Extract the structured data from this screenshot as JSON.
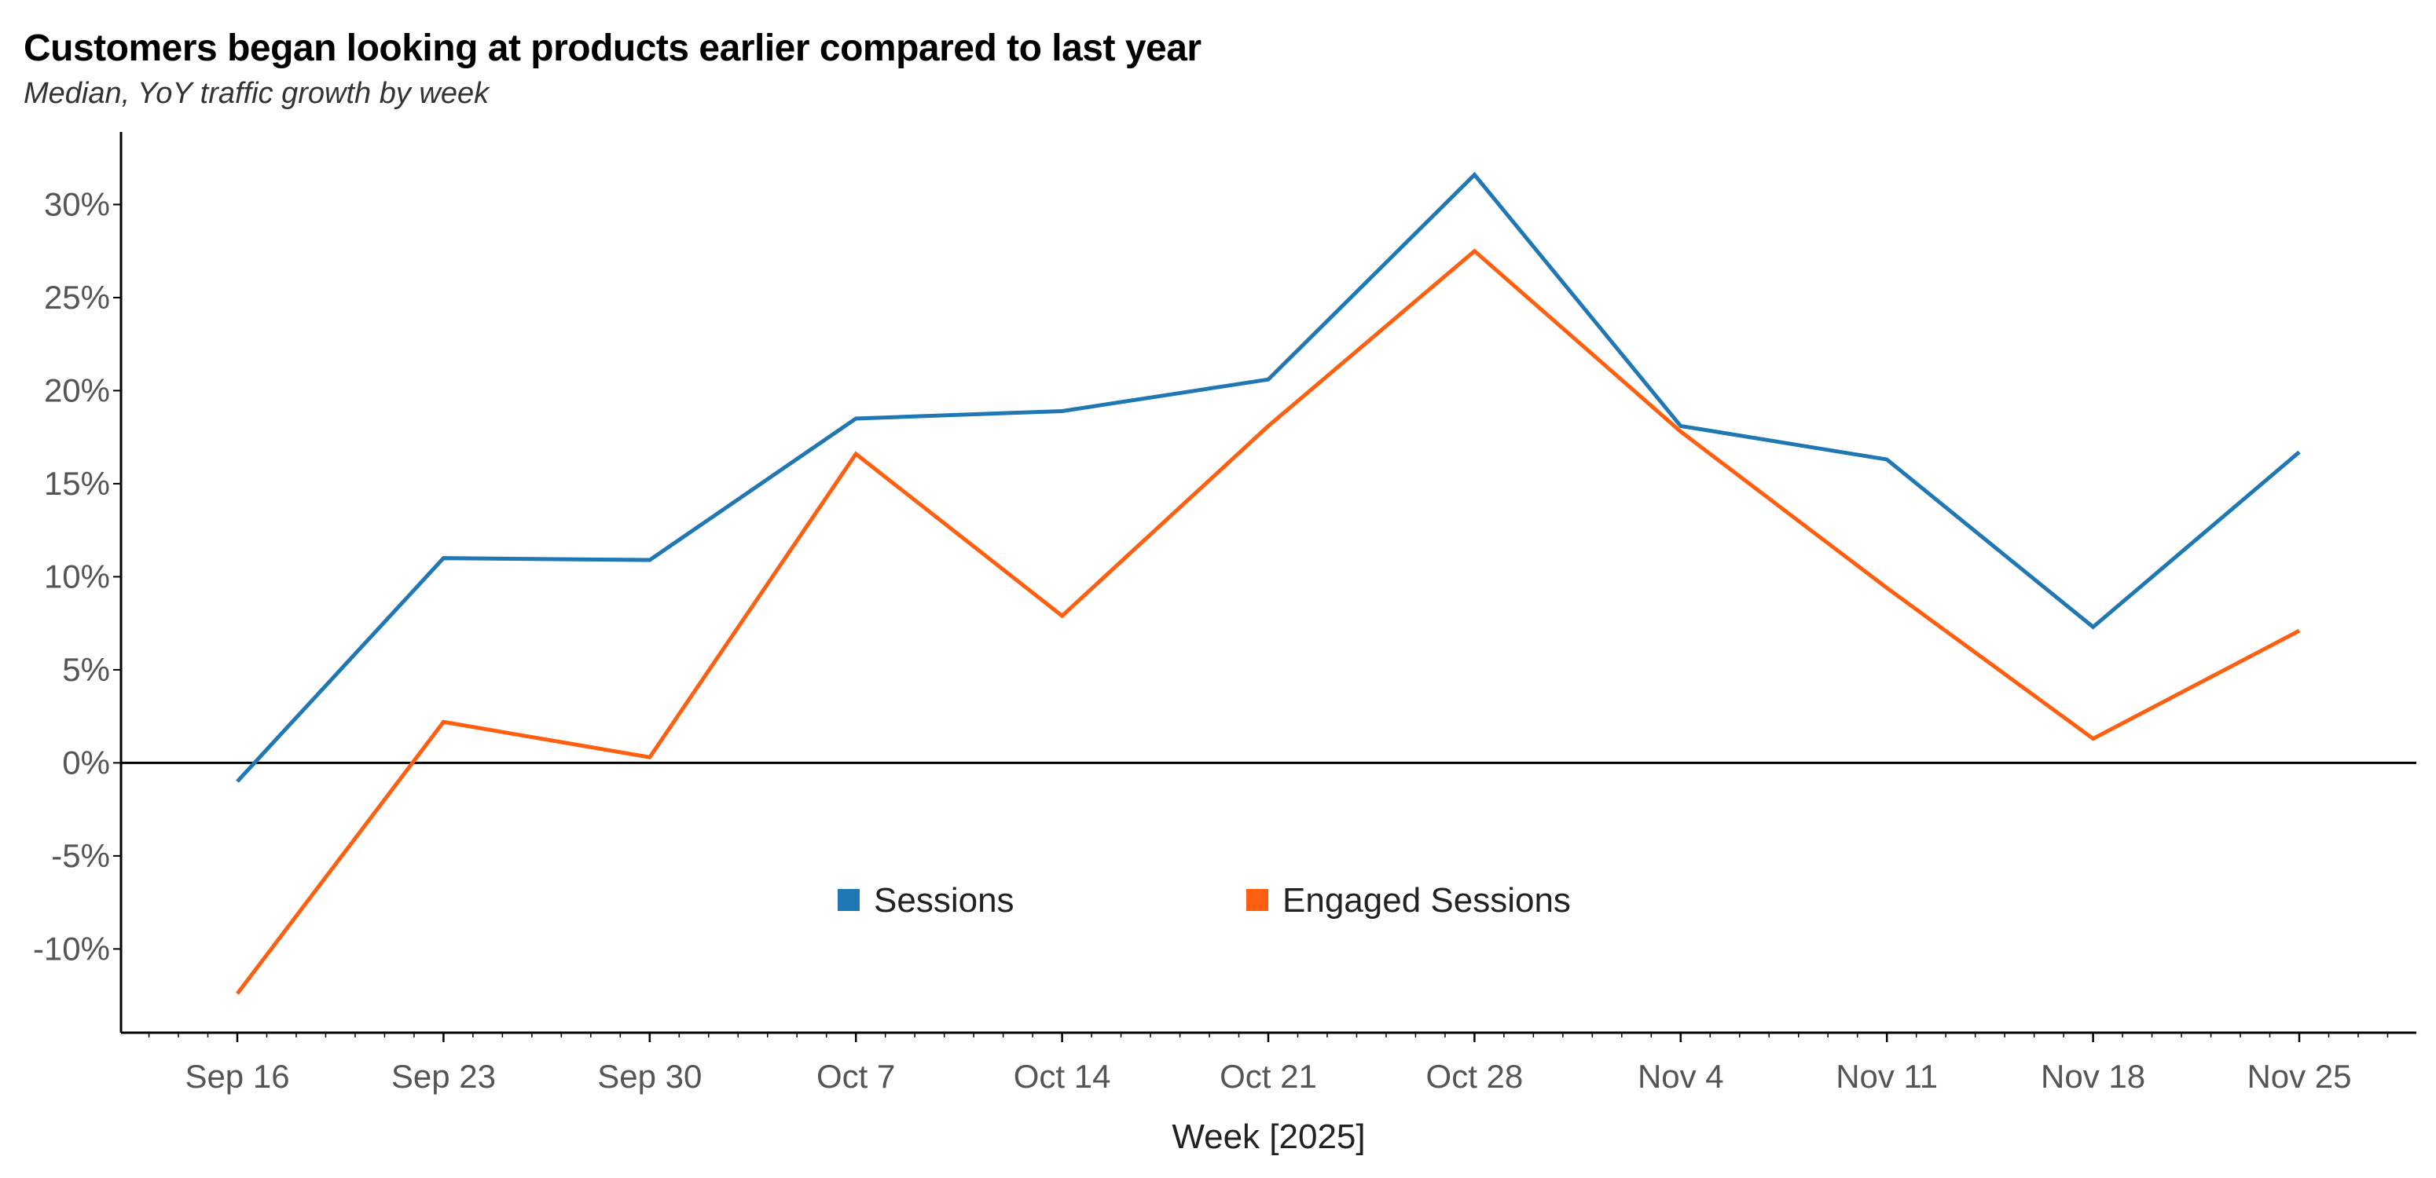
{
  "chart_data": {
    "type": "line",
    "title": "Customers began looking at products earlier compared to last year",
    "subtitle": "Median, YoY traffic growth by week",
    "xlabel": "Week [2025]",
    "ylabel": "",
    "categories": [
      "Sep 16",
      "Sep 23",
      "Sep 30",
      "Oct 7",
      "Oct 14",
      "Oct 21",
      "Oct 28",
      "Nov 4",
      "Nov 11",
      "Nov 18",
      "Nov 25"
    ],
    "y_ticks": [
      "-10%",
      "-5%",
      "0%",
      "5%",
      "10%",
      "15%",
      "20%",
      "25%",
      "30%"
    ],
    "y_tick_values": [
      -10,
      -5,
      0,
      5,
      10,
      15,
      20,
      25,
      30
    ],
    "ylim": [
      -14.5,
      33.9
    ],
    "xlim": [
      "2025-09-12",
      "2025-11-29"
    ],
    "grid": false,
    "zero_line": true,
    "legend_position": "bottom-center",
    "series": [
      {
        "name": "Sessions",
        "color": "#1f77b4",
        "values": [
          -1.0,
          11.0,
          10.9,
          18.5,
          18.9,
          20.6,
          31.6,
          18.1,
          16.3,
          7.3,
          16.7
        ]
      },
      {
        "name": "Engaged Sessions",
        "color": "#ff5f0f",
        "values": [
          -12.4,
          2.2,
          0.3,
          16.6,
          7.9,
          18.1,
          27.5,
          17.8,
          9.4,
          1.3,
          7.1
        ]
      }
    ]
  }
}
